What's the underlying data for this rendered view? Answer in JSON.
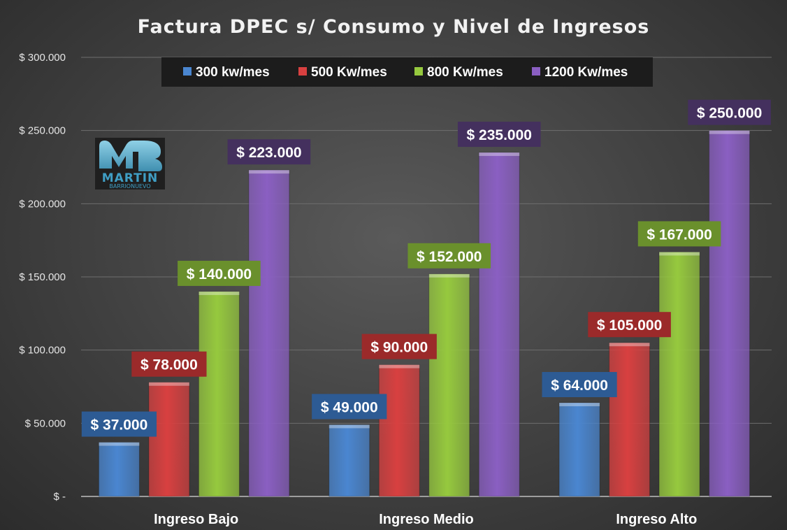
{
  "chart_data": {
    "type": "bar",
    "title": "Factura DPEC s/ Consumo y Nivel de Ingresos",
    "categories": [
      "Ingreso Bajo",
      "Ingreso Medio",
      "Ingreso Alto"
    ],
    "series": [
      {
        "name": "300 kw/mes",
        "values": [
          37000,
          49000,
          64000
        ],
        "labels": [
          "$ 37.000",
          "$ 49.000",
          "$ 64.000"
        ],
        "color": "#4a86d0",
        "label_bg": "#2d5b94"
      },
      {
        "name": "500 Kw/mes",
        "values": [
          78000,
          90000,
          105000
        ],
        "labels": [
          "$ 78.000",
          "$ 90.000",
          "$ 105.000"
        ],
        "color": "#d84040",
        "label_bg": "#9b2a2a"
      },
      {
        "name": "800 Kw/mes",
        "values": [
          140000,
          152000,
          167000
        ],
        "labels": [
          "$ 140.000",
          "$ 152.000",
          "$ 167.000"
        ],
        "color": "#96c93e",
        "label_bg": "#6a902c"
      },
      {
        "name": "1200 Kw/mes",
        "values": [
          223000,
          235000,
          250000
        ],
        "labels": [
          "$ 223.000",
          "$ 235.000",
          "$ 250.000"
        ],
        "color": "#8a5fc2",
        "label_bg": "#44305e"
      }
    ],
    "ylim": [
      0,
      300000
    ],
    "yticks": [
      0,
      50000,
      100000,
      150000,
      200000,
      250000,
      300000
    ],
    "ytick_labels": [
      "$ -",
      "$ 50.000",
      "$ 100.000",
      "$ 150.000",
      "$ 200.000",
      "$ 250.000",
      "$ 300.000"
    ],
    "grid": true,
    "legend_position": "top"
  },
  "logo": {
    "mark": "MB",
    "name": "MARTIN",
    "subname": "BARRIONUEVO"
  }
}
